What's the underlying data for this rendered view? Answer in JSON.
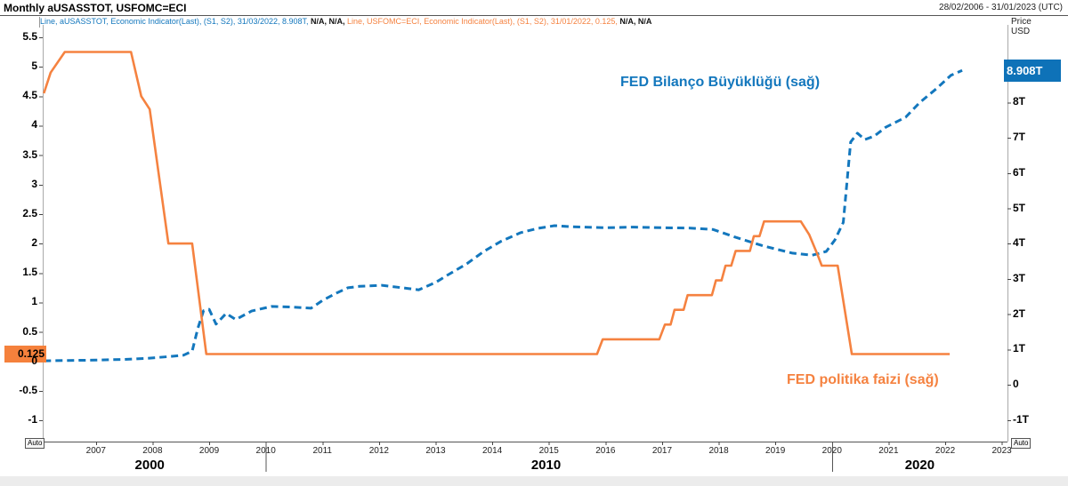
{
  "window": {
    "title": "Monthly aUSASSTOT, USFOMC=ECI",
    "date_range": "28/02/2006 - 31/01/2023 (UTC)"
  },
  "legend": {
    "series1_text": "Line, aUSASSTOT, Economic Indicator(Last), (S1, S2), 31/03/2022, 8.908T, ",
    "series1_na": "N/A, N/A, ",
    "series2_text": "Line, USFOMC=ECI, Economic Indicator(Last), (S1, S2), 31/01/2022, 0.125, ",
    "series2_na": "N/A, N/A"
  },
  "axes": {
    "price_unit_line1": "Price",
    "price_unit_line2": "USD",
    "auto_label": "Auto"
  },
  "badges": {
    "rate": "0.125",
    "balance": "8.908T"
  },
  "annotations": {
    "balance_label": "FED Bilanço Büyüklüğü (sağ)",
    "rate_label": "FED politika faizi (sağ)"
  },
  "colors": {
    "balance_line": "#1377bd",
    "rate_line": "#f58240",
    "balance_badge_bg": "#0e72b8",
    "rate_badge_bg": "#f5813c",
    "axis_line": "#555555",
    "plot_border": "#aaaaaa"
  },
  "chart_data": {
    "type": "line",
    "title": "Monthly aUSASSTOT, USFOMC=ECI",
    "x_domain": [
      2006.06,
      2023.1
    ],
    "left_axis_domain": [
      -1.36,
      5.71
    ],
    "right_axis_domain": [
      -1.61,
      10.2
    ],
    "left_ticks": [
      {
        "v": 5.5,
        "label": "5.5"
      },
      {
        "v": 5,
        "label": "5"
      },
      {
        "v": 4.5,
        "label": "4.5"
      },
      {
        "v": 4,
        "label": "4"
      },
      {
        "v": 3.5,
        "label": "3.5"
      },
      {
        "v": 3,
        "label": "3"
      },
      {
        "v": 2.5,
        "label": "2.5"
      },
      {
        "v": 2,
        "label": "2"
      },
      {
        "v": 1.5,
        "label": "1.5"
      },
      {
        "v": 1,
        "label": "1"
      },
      {
        "v": 0.5,
        "label": "0.5"
      },
      {
        "v": 0,
        "label": "0"
      },
      {
        "v": -0.5,
        "label": "-0.5"
      },
      {
        "v": -1,
        "label": "-1"
      }
    ],
    "right_ticks": [
      {
        "v": 8,
        "label": "8T"
      },
      {
        "v": 7,
        "label": "7T"
      },
      {
        "v": 6,
        "label": "6T"
      },
      {
        "v": 5,
        "label": "5T"
      },
      {
        "v": 4,
        "label": "4T"
      },
      {
        "v": 3,
        "label": "3T"
      },
      {
        "v": 2,
        "label": "2T"
      },
      {
        "v": 1,
        "label": "1T"
      },
      {
        "v": 0,
        "label": "0"
      },
      {
        "v": -1,
        "label": "-1T"
      }
    ],
    "x_ticks": [
      {
        "v": 2007,
        "label": "2007"
      },
      {
        "v": 2008,
        "label": "2008"
      },
      {
        "v": 2009,
        "label": "2009"
      },
      {
        "v": 2010,
        "label": "2010"
      },
      {
        "v": 2011,
        "label": "2011"
      },
      {
        "v": 2012,
        "label": "2012"
      },
      {
        "v": 2013,
        "label": "2013"
      },
      {
        "v": 2014,
        "label": "2014"
      },
      {
        "v": 2015,
        "label": "2015"
      },
      {
        "v": 2016,
        "label": "2016"
      },
      {
        "v": 2017,
        "label": "2017"
      },
      {
        "v": 2018,
        "label": "2018"
      },
      {
        "v": 2019,
        "label": "2019"
      },
      {
        "v": 2020,
        "label": "2020"
      },
      {
        "v": 2021,
        "label": "2021"
      },
      {
        "v": 2022,
        "label": "2022"
      },
      {
        "v": 2023,
        "label": "2023"
      }
    ],
    "decade_labels": [
      {
        "label": "2000",
        "center": 2007.95
      },
      {
        "label": "2010",
        "center": 2014.95
      },
      {
        "label": "2020",
        "center": 2021.55
      }
    ],
    "decade_boundaries": [
      2010,
      2020
    ],
    "last_values": {
      "policy_rate": 0.125,
      "balance_sheet_T": 8.908
    },
    "series": [
      {
        "name": "aUSASSTOT - FED balance sheet (trillion USD)",
        "axis": "right",
        "style": "dashed",
        "color": "#1377bd",
        "points": [
          [
            2006.08,
            0.68
          ],
          [
            2006.5,
            0.69
          ],
          [
            2007.0,
            0.7
          ],
          [
            2007.5,
            0.72
          ],
          [
            2007.9,
            0.75
          ],
          [
            2008.3,
            0.8
          ],
          [
            2008.55,
            0.84
          ],
          [
            2008.7,
            0.95
          ],
          [
            2008.8,
            1.6
          ],
          [
            2008.9,
            2.1
          ],
          [
            2009.0,
            2.14
          ],
          [
            2009.12,
            1.72
          ],
          [
            2009.3,
            2.02
          ],
          [
            2009.47,
            1.85
          ],
          [
            2009.75,
            2.09
          ],
          [
            2010.1,
            2.22
          ],
          [
            2010.5,
            2.2
          ],
          [
            2010.8,
            2.17
          ],
          [
            2011.0,
            2.39
          ],
          [
            2011.25,
            2.6
          ],
          [
            2011.45,
            2.75
          ],
          [
            2011.65,
            2.79
          ],
          [
            2012.05,
            2.82
          ],
          [
            2012.5,
            2.73
          ],
          [
            2012.7,
            2.69
          ],
          [
            2013.0,
            2.9
          ],
          [
            2013.2,
            3.1
          ],
          [
            2013.55,
            3.43
          ],
          [
            2013.85,
            3.78
          ],
          [
            2014.15,
            4.06
          ],
          [
            2014.5,
            4.31
          ],
          [
            2014.8,
            4.43
          ],
          [
            2015.1,
            4.51
          ],
          [
            2015.4,
            4.48
          ],
          [
            2016.0,
            4.45
          ],
          [
            2016.5,
            4.47
          ],
          [
            2017.0,
            4.45
          ],
          [
            2017.5,
            4.44
          ],
          [
            2017.9,
            4.4
          ],
          [
            2018.3,
            4.18
          ],
          [
            2018.8,
            3.93
          ],
          [
            2019.3,
            3.73
          ],
          [
            2019.65,
            3.67
          ],
          [
            2019.9,
            3.78
          ],
          [
            2020.05,
            4.1
          ],
          [
            2020.2,
            4.6
          ],
          [
            2020.33,
            6.88
          ],
          [
            2020.45,
            7.13
          ],
          [
            2020.58,
            6.95
          ],
          [
            2020.75,
            7.05
          ],
          [
            2020.95,
            7.3
          ],
          [
            2021.3,
            7.58
          ],
          [
            2021.55,
            8.0
          ],
          [
            2021.85,
            8.4
          ],
          [
            2022.1,
            8.77
          ],
          [
            2022.3,
            8.908
          ]
        ]
      },
      {
        "name": "USFOMC=ECI - FED policy rate (%)",
        "axis": "left",
        "style": "solid",
        "color": "#f58240",
        "points": [
          [
            2006.08,
            4.55
          ],
          [
            2006.2,
            4.9
          ],
          [
            2006.45,
            5.25
          ],
          [
            2007.62,
            5.25
          ],
          [
            2007.8,
            4.5
          ],
          [
            2007.95,
            4.28
          ],
          [
            2008.28,
            2.0
          ],
          [
            2008.7,
            2.0
          ],
          [
            2008.95,
            0.125
          ],
          [
            2015.85,
            0.125
          ],
          [
            2015.95,
            0.375
          ],
          [
            2016.95,
            0.375
          ],
          [
            2017.05,
            0.625
          ],
          [
            2017.15,
            0.625
          ],
          [
            2017.22,
            0.875
          ],
          [
            2017.38,
            0.875
          ],
          [
            2017.45,
            1.125
          ],
          [
            2017.88,
            1.125
          ],
          [
            2017.95,
            1.375
          ],
          [
            2018.05,
            1.375
          ],
          [
            2018.12,
            1.625
          ],
          [
            2018.22,
            1.625
          ],
          [
            2018.3,
            1.875
          ],
          [
            2018.55,
            1.875
          ],
          [
            2018.62,
            2.125
          ],
          [
            2018.72,
            2.125
          ],
          [
            2018.8,
            2.375
          ],
          [
            2019.45,
            2.375
          ],
          [
            2019.6,
            2.15
          ],
          [
            2019.75,
            1.8
          ],
          [
            2019.82,
            1.625
          ],
          [
            2020.1,
            1.625
          ],
          [
            2020.35,
            0.125
          ],
          [
            2022.08,
            0.125
          ]
        ]
      }
    ]
  }
}
